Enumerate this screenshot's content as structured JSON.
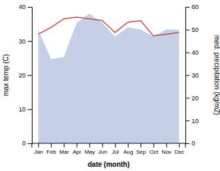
{
  "chart_data": {
    "type": "line",
    "categories": [
      "Jan",
      "Feb",
      "Mar",
      "Apr",
      "May",
      "Jun",
      "Jul",
      "Aug",
      "Sep",
      "Oct",
      "Nov",
      "Dec"
    ],
    "xlabel": "date (month)",
    "ylabel": "max temp (C)",
    "y2label": "med. precipitation (kg/m2)",
    "series": [
      {
        "type": "area",
        "axis": "y2",
        "color": "#c5cfe8",
        "values": [
          50,
          37,
          38,
          53,
          57,
          53,
          47,
          51,
          50,
          47,
          50,
          50
        ]
      },
      {
        "type": "line",
        "color": "#c0504d",
        "values": [
          32.0,
          34.0,
          36.5,
          37.0,
          36.5,
          36.0,
          32.5,
          35.5,
          36.0,
          31.5,
          32.0,
          32.5
        ]
      }
    ],
    "ylim": [
      0,
      40
    ],
    "yticks": [
      0,
      10,
      20,
      30,
      40
    ],
    "y2lim": [
      0,
      60
    ],
    "y2ticks": [
      0,
      10,
      20,
      30,
      40,
      50,
      60
    ]
  }
}
